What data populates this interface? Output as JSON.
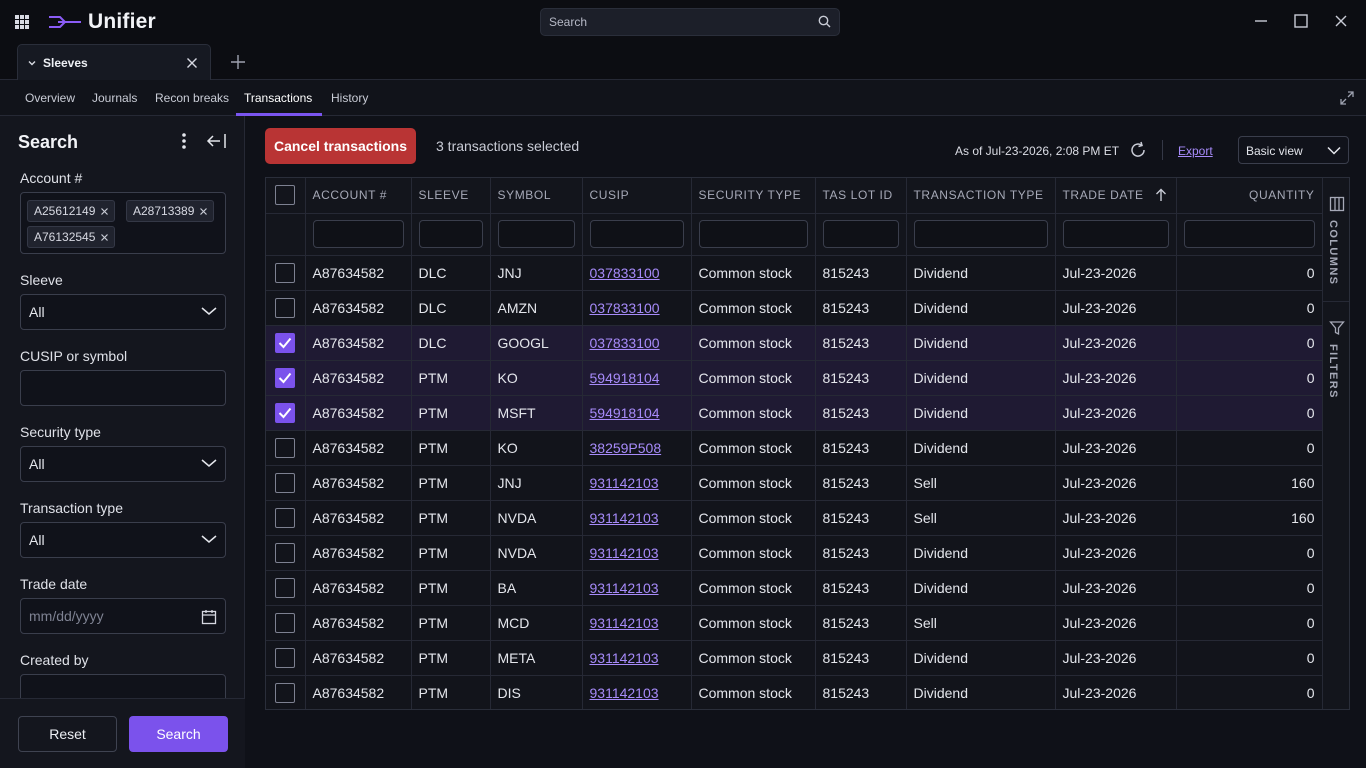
{
  "app": {
    "name": "Unifier"
  },
  "global_search": {
    "placeholder": "Search"
  },
  "doc_tab": {
    "label": "Sleeves"
  },
  "subnav": {
    "items": [
      {
        "label": "Overview"
      },
      {
        "label": "Journals"
      },
      {
        "label": "Recon breaks"
      },
      {
        "label": "Transactions"
      },
      {
        "label": "History"
      }
    ],
    "active_index": 3
  },
  "sidebar": {
    "title": "Search",
    "account": {
      "label": "Account #",
      "chips": [
        "A25612149",
        "A28713389",
        "A76132545"
      ]
    },
    "sleeve": {
      "label": "Sleeve",
      "value": "All"
    },
    "cusip": {
      "label": "CUSIP or symbol",
      "value": ""
    },
    "security_type": {
      "label": "Security type",
      "value": "All"
    },
    "transaction_type": {
      "label": "Transaction type",
      "value": "All"
    },
    "trade_date": {
      "label": "Trade date",
      "placeholder": "mm/dd/yyyy"
    },
    "created_by": {
      "label": "Created by",
      "value": ""
    },
    "reset_label": "Reset",
    "search_label": "Search"
  },
  "toolbar": {
    "cancel_label": "Cancel transactions",
    "selected_text": "3 transactions selected",
    "as_of": "As of Jul-23-2026, 2:08 PM ET",
    "export_label": "Export",
    "view_value": "Basic view"
  },
  "table": {
    "columns": [
      "ACCOUNT #",
      "SLEEVE",
      "SYMBOL",
      "CUSIP",
      "SECURITY TYPE",
      "TAS LOT ID",
      "TRANSACTION TYPE",
      "TRADE DATE",
      "QUANTITY"
    ],
    "sort_column": "TRADE DATE",
    "sort_direction": "ascending",
    "rows": [
      {
        "selected": false,
        "account": "A87634582",
        "sleeve": "DLC",
        "symbol": "JNJ",
        "cusip": "037833100",
        "security_type": "Common stock",
        "lot_id": "815243",
        "txn_type": "Dividend",
        "trade_date": "Jul-23-2026",
        "quantity": "0"
      },
      {
        "selected": false,
        "account": "A87634582",
        "sleeve": "DLC",
        "symbol": "AMZN",
        "cusip": "037833100",
        "security_type": "Common stock",
        "lot_id": "815243",
        "txn_type": "Dividend",
        "trade_date": "Jul-23-2026",
        "quantity": "0"
      },
      {
        "selected": true,
        "account": "A87634582",
        "sleeve": "DLC",
        "symbol": "GOOGL",
        "cusip": "037833100",
        "security_type": "Common stock",
        "lot_id": "815243",
        "txn_type": "Dividend",
        "trade_date": "Jul-23-2026",
        "quantity": "0"
      },
      {
        "selected": true,
        "account": "A87634582",
        "sleeve": "PTM",
        "symbol": "KO",
        "cusip": "594918104",
        "security_type": "Common stock",
        "lot_id": "815243",
        "txn_type": "Dividend",
        "trade_date": "Jul-23-2026",
        "quantity": "0"
      },
      {
        "selected": true,
        "account": "A87634582",
        "sleeve": "PTM",
        "symbol": "MSFT",
        "cusip": "594918104",
        "security_type": "Common stock",
        "lot_id": "815243",
        "txn_type": "Dividend",
        "trade_date": "Jul-23-2026",
        "quantity": "0"
      },
      {
        "selected": false,
        "account": "A87634582",
        "sleeve": "PTM",
        "symbol": "KO",
        "cusip": "38259P508",
        "security_type": "Common stock",
        "lot_id": "815243",
        "txn_type": "Dividend",
        "trade_date": "Jul-23-2026",
        "quantity": "0"
      },
      {
        "selected": false,
        "account": "A87634582",
        "sleeve": "PTM",
        "symbol": "JNJ",
        "cusip": "931142103",
        "security_type": "Common stock",
        "lot_id": "815243",
        "txn_type": "Sell",
        "trade_date": "Jul-23-2026",
        "quantity": "160"
      },
      {
        "selected": false,
        "account": "A87634582",
        "sleeve": "PTM",
        "symbol": "NVDA",
        "cusip": "931142103",
        "security_type": "Common stock",
        "lot_id": "815243",
        "txn_type": "Sell",
        "trade_date": "Jul-23-2026",
        "quantity": "160"
      },
      {
        "selected": false,
        "account": "A87634582",
        "sleeve": "PTM",
        "symbol": "NVDA",
        "cusip": "931142103",
        "security_type": "Common stock",
        "lot_id": "815243",
        "txn_type": "Dividend",
        "trade_date": "Jul-23-2026",
        "quantity": "0"
      },
      {
        "selected": false,
        "account": "A87634582",
        "sleeve": "PTM",
        "symbol": "BA",
        "cusip": "931142103",
        "security_type": "Common stock",
        "lot_id": "815243",
        "txn_type": "Dividend",
        "trade_date": "Jul-23-2026",
        "quantity": "0"
      },
      {
        "selected": false,
        "account": "A87634582",
        "sleeve": "PTM",
        "symbol": "MCD",
        "cusip": "931142103",
        "security_type": "Common stock",
        "lot_id": "815243",
        "txn_type": "Sell",
        "trade_date": "Jul-23-2026",
        "quantity": "0"
      },
      {
        "selected": false,
        "account": "A87634582",
        "sleeve": "PTM",
        "symbol": "META",
        "cusip": "931142103",
        "security_type": "Common stock",
        "lot_id": "815243",
        "txn_type": "Dividend",
        "trade_date": "Jul-23-2026",
        "quantity": "0"
      },
      {
        "selected": false,
        "account": "A87634582",
        "sleeve": "PTM",
        "symbol": "DIS",
        "cusip": "931142103",
        "security_type": "Common stock",
        "lot_id": "815243",
        "txn_type": "Dividend",
        "trade_date": "Jul-23-2026",
        "quantity": "0"
      }
    ]
  },
  "side_panel": {
    "columns_label": "COLUMNS",
    "filters_label": "FILTERS"
  },
  "icons": {
    "apps": "grid-icon",
    "logo": "unifier-logo-icon",
    "search": "search-icon",
    "minimize": "minimize-icon",
    "maximize": "maximize-icon",
    "close": "close-icon",
    "refresh": "refresh-icon",
    "calendar": "calendar-icon",
    "columns": "columns-icon",
    "filter": "filter-icon"
  },
  "colors": {
    "accent": "#7b52ec",
    "danger": "#b93434",
    "link": "#a78bfa",
    "selected_row": "#1f1a33"
  }
}
